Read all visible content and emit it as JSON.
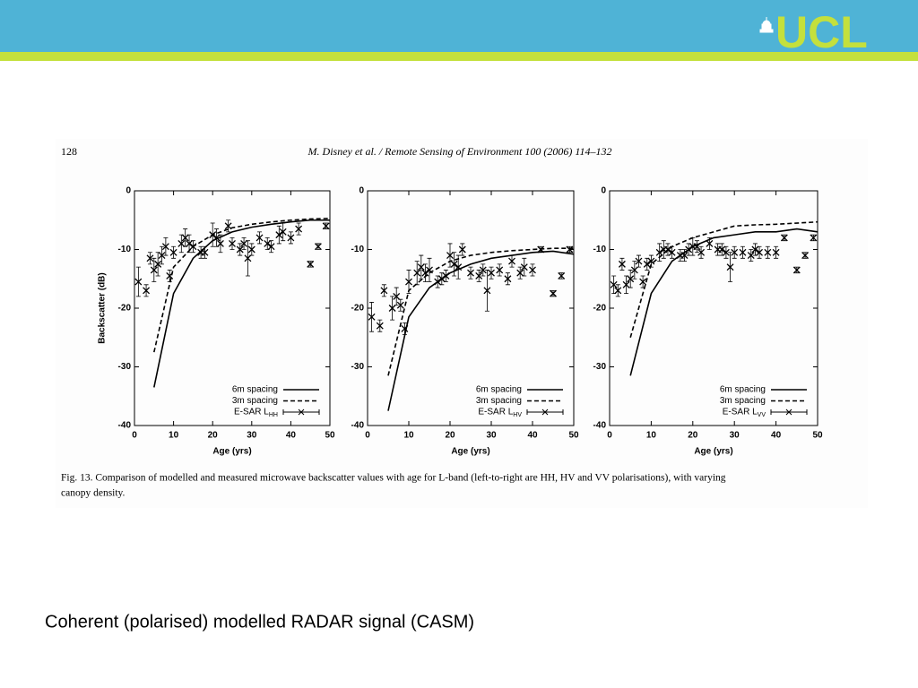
{
  "page": {
    "logo": "UCL",
    "page_number": "128",
    "journal": "M. Disney et al. / Remote Sensing of Environment 100 (2006) 114–132",
    "caption": [
      "Fig. 13. Comparison of modelled and measured microwave backscatter values with age for L-band (left-to-right are HH, HV and VV polarisations), with varying",
      "canopy density."
    ],
    "slide_text": "Coherent (polarised) modelled RADAR signal (CASM)"
  },
  "chart_data": [
    {
      "type": "line",
      "xlabel": "Age (yrs)",
      "ylabel": "Backscatter (dB)",
      "xlim": [
        0,
        50
      ],
      "ylim": [
        -40,
        0
      ],
      "xticks": [
        0,
        10,
        20,
        30,
        40,
        50
      ],
      "yticks": [
        0,
        -10,
        -20,
        -30,
        -40
      ],
      "legend": "lower right",
      "series": [
        {
          "name": "6m spacing",
          "color": "#000000",
          "dash": false,
          "x": [
            5,
            10,
            15,
            20,
            25,
            30,
            35,
            40,
            45,
            50
          ],
          "values": [
            -33.5,
            -17.5,
            -11.5,
            -8.5,
            -7,
            -6.2,
            -5.7,
            -5.3,
            -5,
            -5
          ]
        },
        {
          "name": "3m spacing",
          "color": "#000000",
          "dash": true,
          "x": [
            5,
            10,
            15,
            20,
            25,
            30,
            35,
            40,
            45,
            50
          ],
          "values": [
            -27.5,
            -13,
            -9.5,
            -7.5,
            -6.3,
            -5.7,
            -5.3,
            -5,
            -4.8,
            -4.7
          ]
        },
        {
          "name": "E-SAR L",
          "name_subscript": "HH",
          "color": "#000000",
          "marker": "x",
          "x": [
            1,
            3,
            4,
            5,
            6,
            7,
            8,
            9,
            10,
            12,
            13,
            14,
            15,
            17,
            18,
            20,
            21,
            22,
            24,
            25,
            27,
            28,
            29,
            30,
            32,
            34,
            35,
            37,
            38,
            40,
            42,
            45,
            47,
            49
          ],
          "values": [
            -15.5,
            -17,
            -11.5,
            -13.5,
            -12.5,
            -11,
            -9.5,
            -14.5,
            -10.5,
            -9,
            -8,
            -9,
            -9.5,
            -10.5,
            -10.5,
            -7.5,
            -8,
            -9,
            -6,
            -9,
            -10,
            -9,
            -11.5,
            -10,
            -8,
            -9,
            -9.5,
            -7.5,
            -7,
            -8,
            -6.5,
            -12.5,
            -9.5,
            -6
          ],
          "errors": [
            2.5,
            1,
            1,
            2,
            2,
            1.5,
            1.5,
            1,
            1,
            1.5,
            1.5,
            1.5,
            1,
            1,
            1,
            2,
            1.5,
            1.5,
            1,
            1,
            1,
            1,
            3,
            1,
            1,
            1,
            1,
            1.5,
            1.5,
            1,
            1,
            0.5,
            0.5,
            0.5
          ]
        }
      ]
    },
    {
      "type": "line",
      "xlabel": "Age (yrs)",
      "xlim": [
        0,
        50
      ],
      "ylim": [
        -40,
        0
      ],
      "xticks": [
        0,
        10,
        20,
        30,
        40,
        50
      ],
      "yticks": [
        0,
        -10,
        -20,
        -30,
        -40
      ],
      "legend": "lower right",
      "series": [
        {
          "name": "6m spacing",
          "color": "#000000",
          "dash": false,
          "x": [
            5,
            10,
            15,
            20,
            25,
            30,
            35,
            40,
            45,
            50
          ],
          "values": [
            -37.5,
            -21.5,
            -16.5,
            -14,
            -12.5,
            -11.5,
            -11,
            -10.5,
            -10.3,
            -10.8
          ]
        },
        {
          "name": "3m spacing",
          "color": "#000000",
          "dash": true,
          "x": [
            5,
            10,
            15,
            20,
            25,
            30,
            35,
            40,
            45,
            50
          ],
          "values": [
            -31.5,
            -17,
            -14,
            -12,
            -11,
            -10.5,
            -10.2,
            -10,
            -9.8,
            -9.8
          ]
        },
        {
          "name": "E-SAR L",
          "name_subscript": "HV",
          "color": "#000000",
          "marker": "x",
          "x": [
            1,
            3,
            4,
            6,
            7,
            8,
            9,
            10,
            12,
            13,
            14,
            15,
            17,
            18,
            19,
            20,
            21,
            22,
            23,
            25,
            27,
            28,
            29,
            30,
            32,
            34,
            35,
            37,
            38,
            40,
            42,
            45,
            47,
            49
          ],
          "values": [
            -21.5,
            -23,
            -17,
            -20,
            -18,
            -19.5,
            -23.5,
            -15.5,
            -14,
            -13,
            -14,
            -13.5,
            -15.5,
            -15,
            -14.5,
            -11,
            -12.5,
            -13,
            -10,
            -14,
            -14.5,
            -13.5,
            -17,
            -14,
            -13.5,
            -15,
            -12,
            -14,
            -13,
            -13.5,
            -10,
            -17.5,
            -14.5,
            -10
          ],
          "errors": [
            2.5,
            1,
            1,
            2,
            1.5,
            1,
            1,
            2,
            2,
            2,
            1.5,
            2,
            1,
            1,
            1,
            2,
            2,
            2,
            1,
            1,
            1,
            1,
            3.5,
            1,
            1,
            1,
            1,
            1,
            1.5,
            1,
            0.5,
            0.5,
            0.5,
            0.5
          ]
        }
      ]
    },
    {
      "type": "line",
      "xlabel": "Age (yrs)",
      "xlim": [
        0,
        50
      ],
      "ylim": [
        -40,
        0
      ],
      "xticks": [
        0,
        10,
        20,
        30,
        40,
        50
      ],
      "yticks": [
        0,
        -10,
        -20,
        -30,
        -40
      ],
      "legend": "lower right",
      "series": [
        {
          "name": "6m spacing",
          "color": "#000000",
          "dash": false,
          "x": [
            5,
            10,
            15,
            20,
            25,
            30,
            35,
            40,
            45,
            50
          ],
          "values": [
            -31.5,
            -17.5,
            -12,
            -9.5,
            -8,
            -7.5,
            -7,
            -7,
            -6.5,
            -7
          ]
        },
        {
          "name": "3m spacing",
          "color": "#000000",
          "dash": true,
          "x": [
            5,
            10,
            15,
            20,
            25,
            30,
            35,
            40,
            45,
            50
          ],
          "values": [
            -25,
            -12.5,
            -9.5,
            -8,
            -7,
            -6,
            -5.8,
            -5.7,
            -5.5,
            -5.3
          ]
        },
        {
          "name": "E-SAR L",
          "name_subscript": "VV",
          "color": "#000000",
          "marker": "x",
          "x": [
            1,
            2,
            3,
            4,
            5,
            6,
            7,
            8,
            9,
            10,
            12,
            13,
            14,
            15,
            17,
            18,
            19,
            20,
            21,
            22,
            24,
            26,
            27,
            28,
            29,
            30,
            32,
            34,
            35,
            36,
            38,
            40,
            42,
            45,
            47,
            49
          ],
          "values": [
            -16,
            -17,
            -12.5,
            -16,
            -15,
            -13.5,
            -12,
            -15.5,
            -12.5,
            -12,
            -10.5,
            -10,
            -10,
            -10.5,
            -11,
            -11,
            -10,
            -9.5,
            -9.5,
            -10.5,
            -9,
            -10,
            -10,
            -10.5,
            -13,
            -10.5,
            -10.5,
            -11,
            -10,
            -10.5,
            -10.5,
            -10.5,
            -8,
            -13.5,
            -11,
            -8
          ],
          "errors": [
            1.5,
            1,
            1,
            1.5,
            1.5,
            1.5,
            1,
            1,
            1,
            1,
            1.5,
            1.5,
            1,
            1,
            1,
            1,
            1,
            1.5,
            1,
            1,
            1,
            1,
            1,
            1,
            2.5,
            1,
            1,
            1,
            1,
            1,
            1,
            1,
            0.5,
            0.5,
            0.5,
            0.5
          ]
        }
      ]
    }
  ]
}
